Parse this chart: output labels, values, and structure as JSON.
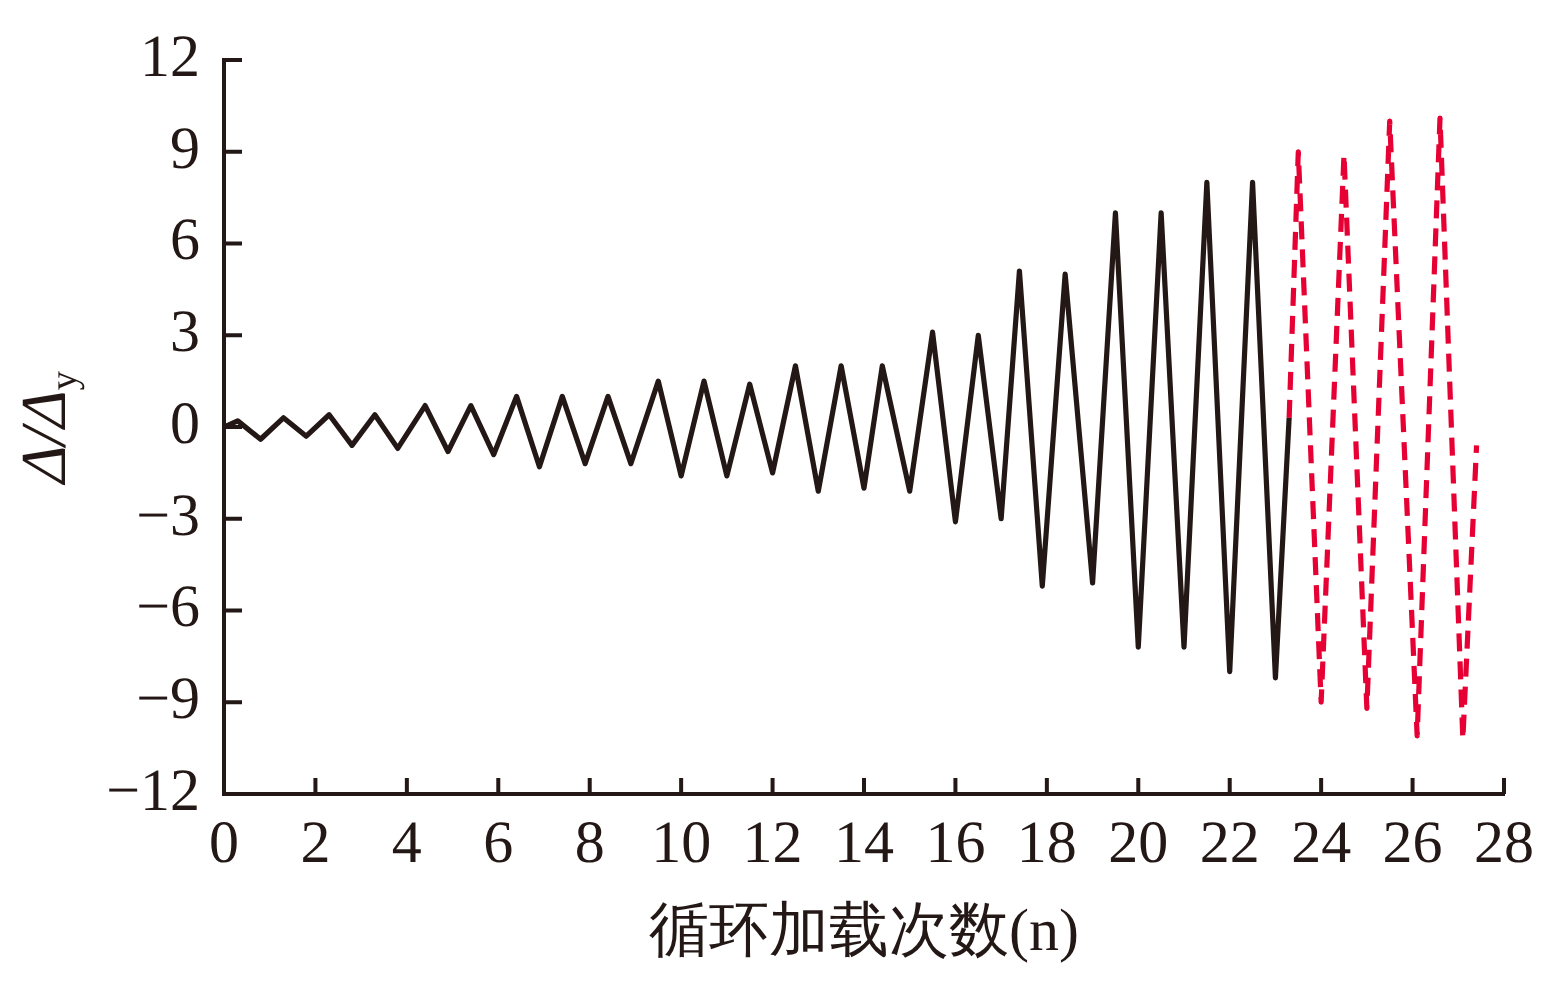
{
  "chart_data": {
    "type": "line",
    "xlabel": "循环加载次数(n)",
    "ylabel": "Δ/Δ$_{y}$",
    "xlim": [
      0,
      28
    ],
    "xticks": [
      0,
      2,
      4,
      6,
      8,
      10,
      12,
      14,
      16,
      18,
      20,
      22,
      24,
      26,
      28
    ],
    "ylim": [
      -12,
      12
    ],
    "yticks": [
      {
        "value": -12,
        "label": "−12"
      },
      {
        "value": -9,
        "label": "−9"
      },
      {
        "value": -6,
        "label": "−6"
      },
      {
        "value": -3,
        "label": "−3"
      },
      0,
      3,
      6,
      9,
      12
    ],
    "series": [
      {
        "color": "#231815",
        "line_style": "solid",
        "x": [
          0,
          0.3,
          0.8,
          1.3,
          1.8,
          2.3,
          2.8,
          3.3,
          3.8,
          4.4,
          4.9,
          5.4,
          5.9,
          6.4,
          6.9,
          7.4,
          7.9,
          8.4,
          8.9,
          9.5,
          10.0,
          10.5,
          11.0,
          11.5,
          12.0,
          12.5,
          13.0,
          13.5,
          14.0,
          14.4,
          15.0,
          15.5,
          16.0,
          16.5,
          17.0,
          17.4,
          17.9,
          18.4,
          19.0,
          19.5,
          20.0,
          20.5,
          21.0,
          21.5,
          22.0,
          22.5,
          23.0,
          23.3
        ],
        "values": [
          0,
          0.2,
          -0.4,
          0.3,
          -0.3,
          0.4,
          -0.6,
          0.4,
          -0.7,
          0.7,
          -0.8,
          0.7,
          -0.9,
          1.0,
          -1.3,
          1.0,
          -1.2,
          1.0,
          -1.2,
          1.5,
          -1.6,
          1.5,
          -1.6,
          1.4,
          -1.5,
          2.0,
          -2.1,
          2.0,
          -2.0,
          2.0,
          -2.1,
          3.1,
          -3.1,
          3.0,
          -3.0,
          5.1,
          -5.2,
          5.0,
          -5.1,
          7.0,
          -7.2,
          7.0,
          -7.2,
          8.0,
          -8.0,
          8.0,
          -8.2,
          0.3
        ]
      },
      {
        "color": "#e60033",
        "line_style": "dashed",
        "x": [
          23.3,
          23.5,
          24.0,
          24.5,
          25.0,
          25.5,
          26.1,
          26.6,
          27.1,
          27.4
        ],
        "values": [
          0.3,
          9.0,
          -9.0,
          8.9,
          -9.2,
          10.0,
          -10.1,
          10.1,
          -10.2,
          -0.6
        ]
      }
    ]
  }
}
